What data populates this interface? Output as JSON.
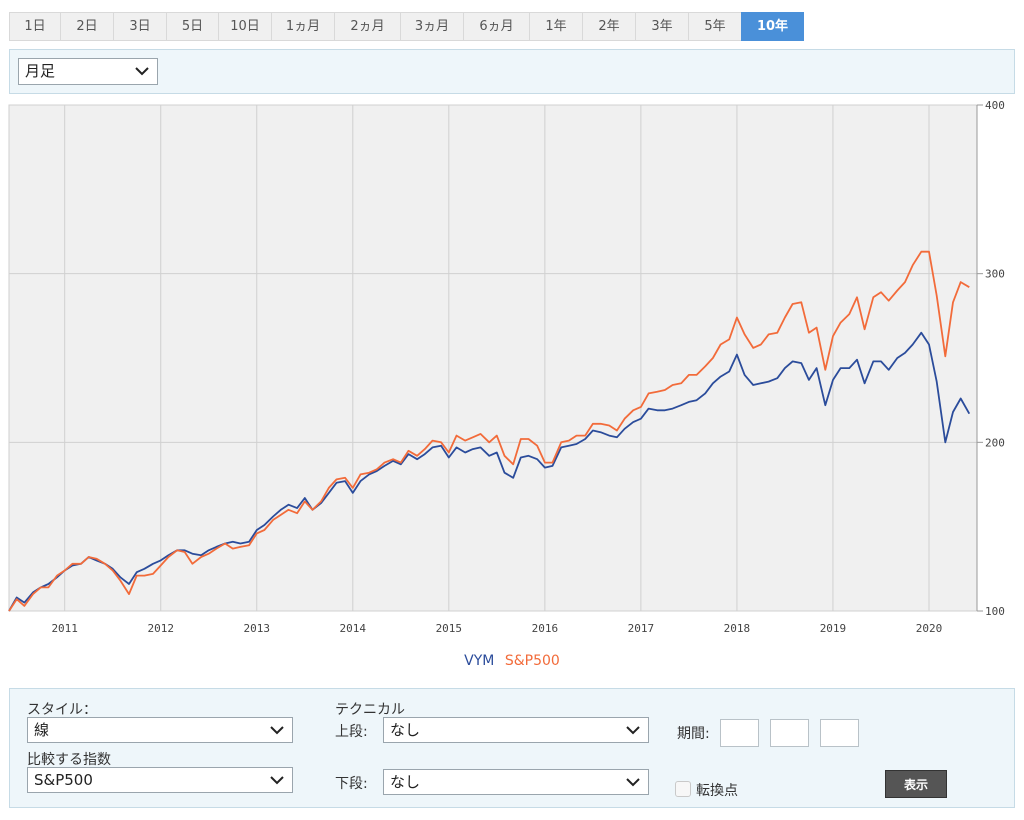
{
  "tabs": [
    {
      "label": "1日"
    },
    {
      "label": "2日"
    },
    {
      "label": "3日"
    },
    {
      "label": "5日"
    },
    {
      "label": "10日"
    },
    {
      "label": "1ヵ月"
    },
    {
      "label": "2ヵ月"
    },
    {
      "label": "3ヵ月"
    },
    {
      "label": "6ヵ月"
    },
    {
      "label": "1年"
    },
    {
      "label": "2年"
    },
    {
      "label": "3年"
    },
    {
      "label": "5年"
    },
    {
      "label": "10年",
      "active": true
    }
  ],
  "period_select": {
    "value": "月足"
  },
  "legend": {
    "vym": "VYM",
    "sp500": "S&P500"
  },
  "settings": {
    "style_label": "スタイル：",
    "style_value": "線",
    "compare_label": "比較する指数",
    "compare_value": "S&P500",
    "technical_label": "テクニカル",
    "upper_label": "上段:",
    "upper_value": "なし",
    "lower_label": "下段:",
    "lower_value": "なし",
    "period_label": "期間:",
    "turning_point_label": "転換点",
    "show_button": "表示"
  },
  "colors": {
    "vym": "#2b4c9b",
    "sp500": "#f26b3a",
    "active_tab": "#4a90d9",
    "plot_bg": "#f0f0f0"
  },
  "chart_data": {
    "type": "line",
    "x_ticks": [
      "2011",
      "2012",
      "2013",
      "2014",
      "2015",
      "2016",
      "2017",
      "2018",
      "2019",
      "2020"
    ],
    "y_ticks": [
      "100",
      "200",
      "300",
      "400"
    ],
    "ylim": [
      100,
      400
    ],
    "xlim": [
      2010.42,
      2020.5
    ],
    "grid": true,
    "legend_position": "bottom-center",
    "series": [
      {
        "name": "VYM",
        "color": "#2b4c9b",
        "points": [
          [
            2010.42,
            100
          ],
          [
            2010.5,
            108
          ],
          [
            2010.58,
            105
          ],
          [
            2010.67,
            111
          ],
          [
            2010.75,
            114
          ],
          [
            2010.83,
            116
          ],
          [
            2010.92,
            120
          ],
          [
            2011.0,
            124
          ],
          [
            2011.08,
            127
          ],
          [
            2011.17,
            128
          ],
          [
            2011.25,
            132
          ],
          [
            2011.33,
            130
          ],
          [
            2011.42,
            128
          ],
          [
            2011.5,
            125
          ],
          [
            2011.58,
            120
          ],
          [
            2011.67,
            116
          ],
          [
            2011.75,
            123
          ],
          [
            2011.83,
            125
          ],
          [
            2011.92,
            128
          ],
          [
            2012.0,
            130
          ],
          [
            2012.08,
            133
          ],
          [
            2012.17,
            136
          ],
          [
            2012.25,
            136
          ],
          [
            2012.33,
            134
          ],
          [
            2012.42,
            133
          ],
          [
            2012.5,
            136
          ],
          [
            2012.58,
            138
          ],
          [
            2012.67,
            140
          ],
          [
            2012.75,
            141
          ],
          [
            2012.83,
            140
          ],
          [
            2012.92,
            141
          ],
          [
            2013.0,
            148
          ],
          [
            2013.08,
            151
          ],
          [
            2013.17,
            156
          ],
          [
            2013.25,
            160
          ],
          [
            2013.33,
            163
          ],
          [
            2013.42,
            161
          ],
          [
            2013.5,
            167
          ],
          [
            2013.58,
            160
          ],
          [
            2013.67,
            164
          ],
          [
            2013.75,
            170
          ],
          [
            2013.83,
            176
          ],
          [
            2013.92,
            177
          ],
          [
            2014.0,
            170
          ],
          [
            2014.08,
            177
          ],
          [
            2014.17,
            181
          ],
          [
            2014.25,
            183
          ],
          [
            2014.33,
            186
          ],
          [
            2014.42,
            189
          ],
          [
            2014.5,
            187
          ],
          [
            2014.58,
            193
          ],
          [
            2014.67,
            190
          ],
          [
            2014.75,
            193
          ],
          [
            2014.83,
            197
          ],
          [
            2014.92,
            198
          ],
          [
            2015.0,
            191
          ],
          [
            2015.08,
            197
          ],
          [
            2015.17,
            194
          ],
          [
            2015.25,
            196
          ],
          [
            2015.33,
            197
          ],
          [
            2015.42,
            192
          ],
          [
            2015.5,
            194
          ],
          [
            2015.58,
            182
          ],
          [
            2015.67,
            179
          ],
          [
            2015.75,
            191
          ],
          [
            2015.83,
            192
          ],
          [
            2015.92,
            190
          ],
          [
            2016.0,
            185
          ],
          [
            2016.08,
            186
          ],
          [
            2016.17,
            197
          ],
          [
            2016.25,
            198
          ],
          [
            2016.33,
            199
          ],
          [
            2016.42,
            202
          ],
          [
            2016.5,
            207
          ],
          [
            2016.58,
            206
          ],
          [
            2016.67,
            204
          ],
          [
            2016.75,
            203
          ],
          [
            2016.83,
            208
          ],
          [
            2016.92,
            212
          ],
          [
            2017.0,
            214
          ],
          [
            2017.08,
            220
          ],
          [
            2017.17,
            219
          ],
          [
            2017.25,
            219
          ],
          [
            2017.33,
            220
          ],
          [
            2017.42,
            222
          ],
          [
            2017.5,
            224
          ],
          [
            2017.58,
            225
          ],
          [
            2017.67,
            229
          ],
          [
            2017.75,
            235
          ],
          [
            2017.83,
            239
          ],
          [
            2017.92,
            242
          ],
          [
            2018.0,
            252
          ],
          [
            2018.08,
            240
          ],
          [
            2018.17,
            234
          ],
          [
            2018.25,
            235
          ],
          [
            2018.33,
            236
          ],
          [
            2018.42,
            238
          ],
          [
            2018.5,
            244
          ],
          [
            2018.58,
            248
          ],
          [
            2018.67,
            247
          ],
          [
            2018.75,
            237
          ],
          [
            2018.83,
            244
          ],
          [
            2018.92,
            222
          ],
          [
            2019.0,
            237
          ],
          [
            2019.08,
            244
          ],
          [
            2019.17,
            244
          ],
          [
            2019.25,
            249
          ],
          [
            2019.33,
            235
          ],
          [
            2019.42,
            248
          ],
          [
            2019.5,
            248
          ],
          [
            2019.58,
            243
          ],
          [
            2019.67,
            250
          ],
          [
            2019.75,
            253
          ],
          [
            2019.83,
            258
          ],
          [
            2019.92,
            265
          ],
          [
            2020.0,
            258
          ],
          [
            2020.08,
            236
          ],
          [
            2020.17,
            200
          ],
          [
            2020.25,
            218
          ],
          [
            2020.33,
            226
          ],
          [
            2020.42,
            217
          ]
        ]
      },
      {
        "name": "S&P500",
        "color": "#f26b3a",
        "points": [
          [
            2010.42,
            100
          ],
          [
            2010.5,
            107
          ],
          [
            2010.58,
            103
          ],
          [
            2010.67,
            110
          ],
          [
            2010.75,
            114
          ],
          [
            2010.83,
            114
          ],
          [
            2010.92,
            121
          ],
          [
            2011.0,
            124
          ],
          [
            2011.08,
            128
          ],
          [
            2011.17,
            128
          ],
          [
            2011.25,
            132
          ],
          [
            2011.33,
            131
          ],
          [
            2011.42,
            128
          ],
          [
            2011.5,
            124
          ],
          [
            2011.58,
            118
          ],
          [
            2011.67,
            110
          ],
          [
            2011.75,
            121
          ],
          [
            2011.83,
            121
          ],
          [
            2011.92,
            122
          ],
          [
            2012.0,
            127
          ],
          [
            2012.08,
            132
          ],
          [
            2012.17,
            136
          ],
          [
            2012.25,
            135
          ],
          [
            2012.33,
            128
          ],
          [
            2012.42,
            132
          ],
          [
            2012.5,
            134
          ],
          [
            2012.58,
            137
          ],
          [
            2012.67,
            140
          ],
          [
            2012.75,
            137
          ],
          [
            2012.83,
            138
          ],
          [
            2012.92,
            139
          ],
          [
            2013.0,
            146
          ],
          [
            2013.08,
            148
          ],
          [
            2013.17,
            154
          ],
          [
            2013.25,
            157
          ],
          [
            2013.33,
            160
          ],
          [
            2013.42,
            158
          ],
          [
            2013.5,
            165
          ],
          [
            2013.58,
            160
          ],
          [
            2013.67,
            165
          ],
          [
            2013.75,
            173
          ],
          [
            2013.83,
            178
          ],
          [
            2013.92,
            179
          ],
          [
            2014.0,
            173
          ],
          [
            2014.08,
            181
          ],
          [
            2014.17,
            182
          ],
          [
            2014.25,
            184
          ],
          [
            2014.33,
            188
          ],
          [
            2014.42,
            190
          ],
          [
            2014.5,
            188
          ],
          [
            2014.58,
            195
          ],
          [
            2014.67,
            192
          ],
          [
            2014.75,
            196
          ],
          [
            2014.83,
            201
          ],
          [
            2014.92,
            200
          ],
          [
            2015.0,
            194
          ],
          [
            2015.08,
            204
          ],
          [
            2015.17,
            201
          ],
          [
            2015.25,
            203
          ],
          [
            2015.33,
            205
          ],
          [
            2015.42,
            200
          ],
          [
            2015.5,
            204
          ],
          [
            2015.58,
            192
          ],
          [
            2015.67,
            187
          ],
          [
            2015.75,
            202
          ],
          [
            2015.83,
            202
          ],
          [
            2015.92,
            198
          ],
          [
            2016.0,
            188
          ],
          [
            2016.08,
            188
          ],
          [
            2016.17,
            200
          ],
          [
            2016.25,
            201
          ],
          [
            2016.33,
            204
          ],
          [
            2016.42,
            204
          ],
          [
            2016.5,
            211
          ],
          [
            2016.58,
            211
          ],
          [
            2016.67,
            210
          ],
          [
            2016.75,
            207
          ],
          [
            2016.83,
            214
          ],
          [
            2016.92,
            219
          ],
          [
            2017.0,
            221
          ],
          [
            2017.08,
            229
          ],
          [
            2017.17,
            230
          ],
          [
            2017.25,
            231
          ],
          [
            2017.33,
            234
          ],
          [
            2017.42,
            235
          ],
          [
            2017.5,
            240
          ],
          [
            2017.58,
            240
          ],
          [
            2017.67,
            245
          ],
          [
            2017.75,
            250
          ],
          [
            2017.83,
            258
          ],
          [
            2017.92,
            261
          ],
          [
            2018.0,
            274
          ],
          [
            2018.08,
            264
          ],
          [
            2018.17,
            256
          ],
          [
            2018.25,
            258
          ],
          [
            2018.33,
            264
          ],
          [
            2018.42,
            265
          ],
          [
            2018.5,
            274
          ],
          [
            2018.58,
            282
          ],
          [
            2018.67,
            283
          ],
          [
            2018.75,
            265
          ],
          [
            2018.83,
            268
          ],
          [
            2018.92,
            243
          ],
          [
            2019.0,
            263
          ],
          [
            2019.08,
            271
          ],
          [
            2019.17,
            276
          ],
          [
            2019.25,
            286
          ],
          [
            2019.33,
            267
          ],
          [
            2019.42,
            286
          ],
          [
            2019.5,
            289
          ],
          [
            2019.58,
            284
          ],
          [
            2019.67,
            290
          ],
          [
            2019.75,
            295
          ],
          [
            2019.83,
            305
          ],
          [
            2019.92,
            313
          ],
          [
            2020.0,
            313
          ],
          [
            2020.08,
            287
          ],
          [
            2020.17,
            251
          ],
          [
            2020.25,
            283
          ],
          [
            2020.33,
            295
          ],
          [
            2020.42,
            292
          ]
        ]
      }
    ]
  }
}
